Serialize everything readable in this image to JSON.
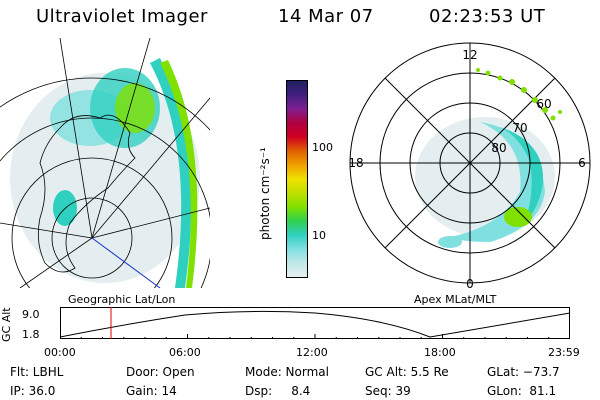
{
  "header": {
    "instrument": "Ultraviolet Imager",
    "date": "14 Mar 07",
    "time": "02:23:53 UT"
  },
  "colorbar": {
    "unit_label": "photon cm⁻²s⁻¹",
    "ticks": [
      "100",
      "10"
    ],
    "colors": [
      "#202060",
      "#402080",
      "#802090",
      "#b00040",
      "#d00020",
      "#e06000",
      "#f0a000",
      "#f0e000",
      "#c0e000",
      "#80e000",
      "#30d050",
      "#30d0c0",
      "#80e0e0",
      "#c0e8e8",
      "#e8f0f0"
    ]
  },
  "right_map": {
    "labels": {
      "top": "12",
      "left": "18",
      "right": "6",
      "bottom": "0"
    },
    "rings": [
      "60",
      "70",
      "80"
    ],
    "title": "Apex MLat/MLT"
  },
  "left_map": {
    "title": "Geographic Lat/Lon"
  },
  "altitude_plot": {
    "ylabel": "GC Alt",
    "yticks": [
      "9.0",
      "1.8"
    ],
    "xticks": [
      "00:00",
      "06:00",
      "12:00",
      "18:00",
      "23:59"
    ],
    "marker_hour": 2.4,
    "marker_color": "#e00000"
  },
  "status": {
    "row1": {
      "filter": "Flt: LBHL",
      "door": "Door: Open",
      "mode": "Mode: Normal",
      "gcalt": "GC Alt: 5.5 Re",
      "glat": "GLat: −73.7"
    },
    "row2": {
      "ip": "IP: 36.0",
      "gain": "Gain: 14",
      "dsp": "Dsp:     8.4",
      "seq": "Seq: 39",
      "glon": "GLon:  81.1"
    }
  }
}
